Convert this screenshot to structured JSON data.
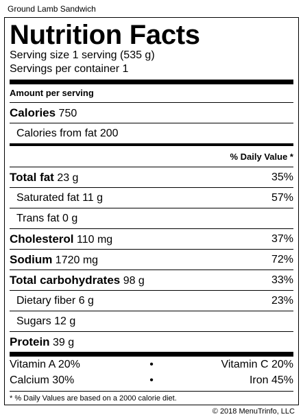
{
  "item_name": "Ground Lamb Sandwich",
  "title": "Nutrition Facts",
  "serving_size": "Serving size 1 serving (535 g)",
  "servings_per_container": "Servings per container 1",
  "amount_per_serving": "Amount per serving",
  "calories": {
    "label": "Calories",
    "value": "750"
  },
  "calories_from_fat": "Calories from fat 200",
  "daily_value_header": "% Daily Value *",
  "nutrients": {
    "total_fat": {
      "label": "Total fat",
      "amount": "23 g",
      "dv": "35%"
    },
    "saturated_fat": {
      "label": "Saturated fat 11 g",
      "dv": "57%"
    },
    "trans_fat": {
      "label": "Trans fat 0 g",
      "dv": ""
    },
    "cholesterol": {
      "label": "Cholesterol",
      "amount": "110 mg",
      "dv": "37%"
    },
    "sodium": {
      "label": "Sodium",
      "amount": "1720 mg",
      "dv": "72%"
    },
    "total_carbohydrates": {
      "label": "Total carbohydrates",
      "amount": "98 g",
      "dv": "33%"
    },
    "dietary_fiber": {
      "label": "Dietary fiber 6 g",
      "dv": "23%"
    },
    "sugars": {
      "label": "Sugars 12 g",
      "dv": ""
    },
    "protein": {
      "label": "Protein",
      "amount": "39 g"
    }
  },
  "vitamins": [
    {
      "left": "Vitamin A 20%",
      "right": "Vitamin C 20%"
    },
    {
      "left": "Calcium 30%",
      "right": "Iron 45%"
    }
  ],
  "separator": "•",
  "footnote": "* % Daily Values are based on a 2000 calorie diet.",
  "copyright": "© 2018 MenuTrinfo, LLC"
}
